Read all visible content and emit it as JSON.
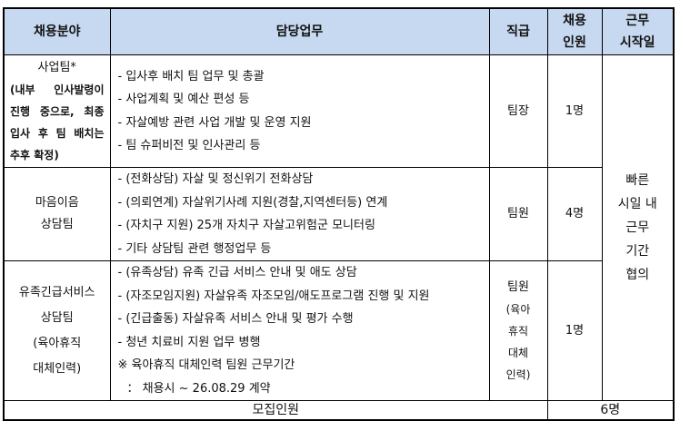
{
  "headers": [
    "채용분야",
    "담당업무",
    "직급",
    "채용\n인원",
    "근무\n시작일"
  ],
  "header_lines": {
    "col3": [
      "채용",
      "인원"
    ],
    "col4": [
      "근무",
      "시작일"
    ]
  },
  "rows": [
    {
      "dept": "사업팀*",
      "dept_note": [
        "(내부 인사발령이",
        "진행 중으로, 최종",
        "입사 후 팀 배치는",
        "추후 확정)"
      ],
      "duties": [
        "- 입사후 배치 팀 업무 및 총괄",
        "- 사업계획 및 예산 편성 등",
        "- 자살예방 관련 사업 개발 및 운영 지원",
        "- 팀 슈퍼비전 및 인사관리 등"
      ],
      "rank": "팀장",
      "count": "1명"
    },
    {
      "dept_lines": [
        "마음이음",
        "상담팀"
      ],
      "duties": [
        "- (전화상담) 자살 및 정신위기 전화상담",
        "- (의뢰연계) 자살위기사례 지원(경찰,지역센터등) 연계",
        "- (자치구 지원) 25개 자치구 자살고위험군 모니터링",
        "- 기타 상담팀 관련 행정업무 등"
      ],
      "rank": "팀원",
      "count": "4명"
    },
    {
      "dept_lines": [
        "유족긴급서비스",
        "상담팀",
        "(육아휴직",
        "대체인력)"
      ],
      "duties": [
        "- (유족상담) 유족 긴급 서비스 안내 및 애도 상담",
        "- (자조모임지원) 자살유족 자조모임/애도프로그램 진행 및 지원",
        "- (긴급출동) 자살유족 서비스 안내 및 평가 수행",
        "- 청년 치료비 지원 업무 병행",
        "※ 육아휴직 대체인력 팀원 근무기간",
        "： 채용시 ~ 26.08.29 계약"
      ],
      "rank_lines": [
        "팀원",
        "(육아",
        "휴직",
        "대체",
        "인력)"
      ],
      "count": "1명"
    }
  ],
  "start_date_lines": [
    "빠른",
    "시일 내",
    "근무",
    "기간",
    "협의"
  ],
  "footer": {
    "label": "모집인원",
    "total": "6명"
  }
}
